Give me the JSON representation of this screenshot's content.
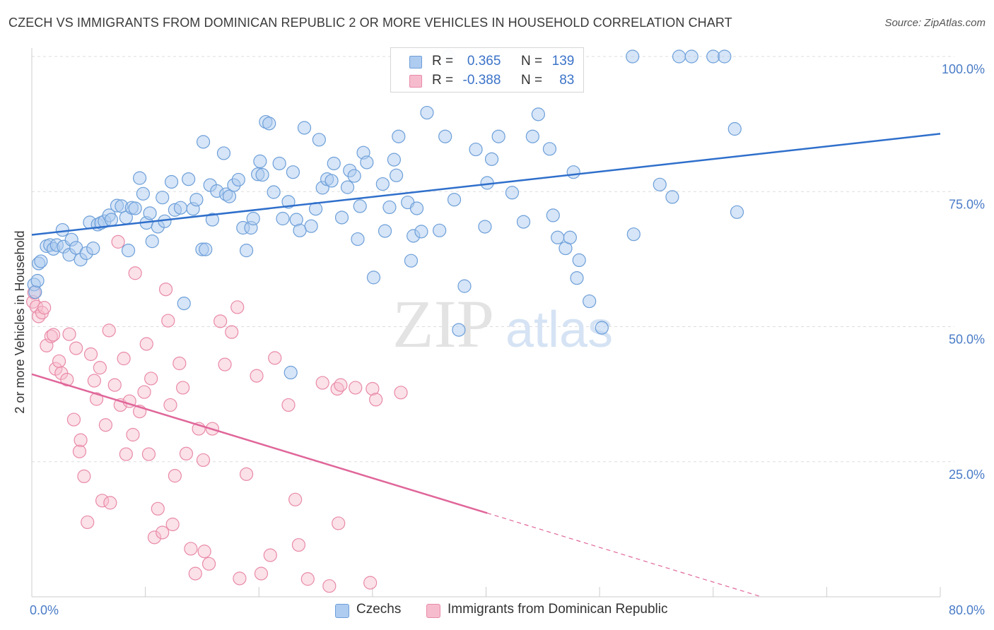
{
  "header": {
    "title": "CZECH VS IMMIGRANTS FROM DOMINICAN REPUBLIC 2 OR MORE VEHICLES IN HOUSEHOLD CORRELATION CHART",
    "source": "Source: ZipAtlas.com"
  },
  "watermark": {
    "zip": "ZIP",
    "atlas": "atlas"
  },
  "legend": {
    "rows": [
      {
        "r_label": "R =",
        "r_value": "0.365",
        "n_label": "N =",
        "n_value": "139"
      },
      {
        "r_label": "R =",
        "r_value": "-0.388",
        "n_label": "N =",
        "n_value": "83"
      }
    ]
  },
  "bottom_legend": [
    "Czechs",
    "Immigrants from Dominican Republic"
  ],
  "colors": {
    "czech_fill": "#aecbf0",
    "czech_stroke": "#6d9fd9",
    "czech_line": "#2f6fcb",
    "dom_fill": "#f6bccd",
    "dom_stroke": "#e98aa8",
    "dom_line": "#e0669a",
    "tick_text": "#4a7cc7",
    "grid": "#dddddd"
  },
  "chart_data": {
    "type": "scatter",
    "title": "CZECH VS IMMIGRANTS FROM DOMINICAN REPUBLIC 2 OR MORE VEHICLES IN HOUSEHOLD CORRELATION CHART",
    "xlabel": "",
    "ylabel": "2 or more Vehicles in Household",
    "xlim": [
      0,
      80
    ],
    "ylim": [
      0,
      102
    ],
    "x_tick_labels": [
      "0.0%",
      "80.0%"
    ],
    "y_ticks": [
      25,
      50,
      75,
      100
    ],
    "y_tick_labels": [
      "25.0%",
      "50.0%",
      "75.0%",
      "100.0%"
    ],
    "grid": "horizontal dashed",
    "legend_placement": "top-center",
    "series": [
      {
        "name": "Czechs",
        "r": 0.365,
        "n": 139,
        "trend": {
          "x": [
            0,
            80
          ],
          "y": [
            67.0,
            85.7
          ]
        },
        "points": [
          [
            0.2,
            57.8
          ],
          [
            0.3,
            56.4
          ],
          [
            0.5,
            58.5
          ],
          [
            0.6,
            61.7
          ],
          [
            0.8,
            62.1
          ],
          [
            1.3,
            64.9
          ],
          [
            1.6,
            65.1
          ],
          [
            1.9,
            64.4
          ],
          [
            2.2,
            65.1
          ],
          [
            2.7,
            67.9
          ],
          [
            2.8,
            64.8
          ],
          [
            3.3,
            63.3
          ],
          [
            3.5,
            66.1
          ],
          [
            3.9,
            64.6
          ],
          [
            4.3,
            62.4
          ],
          [
            4.8,
            63.6
          ],
          [
            5.4,
            64.5
          ],
          [
            5.1,
            69.3
          ],
          [
            5.8,
            68.9
          ],
          [
            6.1,
            69.2
          ],
          [
            6.4,
            69.5
          ],
          [
            6.8,
            70.6
          ],
          [
            7.0,
            69.8
          ],
          [
            7.5,
            72.4
          ],
          [
            7.9,
            72.3
          ],
          [
            8.3,
            70.2
          ],
          [
            8.5,
            64.1
          ],
          [
            8.8,
            72.0
          ],
          [
            9.1,
            71.9
          ],
          [
            9.5,
            77.5
          ],
          [
            9.8,
            74.6
          ],
          [
            10.1,
            69.2
          ],
          [
            10.4,
            71.0
          ],
          [
            10.6,
            65.8
          ],
          [
            11.1,
            68.5
          ],
          [
            11.5,
            73.9
          ],
          [
            11.7,
            69.5
          ],
          [
            12.3,
            76.8
          ],
          [
            12.6,
            71.6
          ],
          [
            13.1,
            72.0
          ],
          [
            13.4,
            54.3
          ],
          [
            13.8,
            77.3
          ],
          [
            14.2,
            71.8
          ],
          [
            14.5,
            73.5
          ],
          [
            15.0,
            64.3
          ],
          [
            15.3,
            64.3
          ],
          [
            15.7,
            76.2
          ],
          [
            15.9,
            69.8
          ],
          [
            16.3,
            75.1
          ],
          [
            16.9,
            82.1
          ],
          [
            17.1,
            74.5
          ],
          [
            17.4,
            74.1
          ],
          [
            17.8,
            76.2
          ],
          [
            18.2,
            77.2
          ],
          [
            18.6,
            68.3
          ],
          [
            18.9,
            64.1
          ],
          [
            19.3,
            68.3
          ],
          [
            19.5,
            70.0
          ],
          [
            19.9,
            78.2
          ],
          [
            20.1,
            80.6
          ],
          [
            20.3,
            78.1
          ],
          [
            20.6,
            87.9
          ],
          [
            20.9,
            87.6
          ],
          [
            21.3,
            74.9
          ],
          [
            21.8,
            80.2
          ],
          [
            22.1,
            70.0
          ],
          [
            22.6,
            73.1
          ],
          [
            23.0,
            78.6
          ],
          [
            23.3,
            69.8
          ],
          [
            23.6,
            67.8
          ],
          [
            24.0,
            86.8
          ],
          [
            24.6,
            68.6
          ],
          [
            25.0,
            71.8
          ],
          [
            25.3,
            84.6
          ],
          [
            25.6,
            75.7
          ],
          [
            26.0,
            77.3
          ],
          [
            26.4,
            77.0
          ],
          [
            26.6,
            80.2
          ],
          [
            27.3,
            70.2
          ],
          [
            27.8,
            75.8
          ],
          [
            28.0,
            78.9
          ],
          [
            28.4,
            77.9
          ],
          [
            28.7,
            66.2
          ],
          [
            28.9,
            72.3
          ],
          [
            29.2,
            82.2
          ],
          [
            29.5,
            80.4
          ],
          [
            30.1,
            59.1
          ],
          [
            30.9,
            76.4
          ],
          [
            31.1,
            67.7
          ],
          [
            31.5,
            72.1
          ],
          [
            31.9,
            80.9
          ],
          [
            32.3,
            85.2
          ],
          [
            32.1,
            78.0
          ],
          [
            33.1,
            73.0
          ],
          [
            33.4,
            62.2
          ],
          [
            33.6,
            66.8
          ],
          [
            33.9,
            71.9
          ],
          [
            34.3,
            67.6
          ],
          [
            34.8,
            89.6
          ],
          [
            35.9,
            67.8
          ],
          [
            36.4,
            85.2
          ],
          [
            36.7,
            100.0
          ],
          [
            37.2,
            73.5
          ],
          [
            38.1,
            57.5
          ],
          [
            37.6,
            49.4
          ],
          [
            39.1,
            82.8
          ],
          [
            39.9,
            68.5
          ],
          [
            40.1,
            76.6
          ],
          [
            40.5,
            81.0
          ],
          [
            41.1,
            85.2
          ],
          [
            42.3,
            74.8
          ],
          [
            43.3,
            69.4
          ],
          [
            44.1,
            85.2
          ],
          [
            44.6,
            89.3
          ],
          [
            45.6,
            82.9
          ],
          [
            45.9,
            70.6
          ],
          [
            46.3,
            66.5
          ],
          [
            47.0,
            64.5
          ],
          [
            47.4,
            66.5
          ],
          [
            47.7,
            78.6
          ],
          [
            48.0,
            59.0
          ],
          [
            48.2,
            62.3
          ],
          [
            49.1,
            54.7
          ],
          [
            50.2,
            49.8
          ],
          [
            52.9,
            100.0
          ],
          [
            53.0,
            67.1
          ],
          [
            55.3,
            76.3
          ],
          [
            56.4,
            74.0
          ],
          [
            57.0,
            100.0
          ],
          [
            58.1,
            100.0
          ],
          [
            60.0,
            100.0
          ],
          [
            61.9,
            86.6
          ],
          [
            62.1,
            71.2
          ],
          [
            61.0,
            100.0
          ],
          [
            22.8,
            41.5
          ],
          [
            15.1,
            84.2
          ]
        ]
      },
      {
        "name": "Immigrants from Dominican Republic",
        "r": -0.388,
        "n": 83,
        "trend": {
          "x": [
            0,
            40.1
          ],
          "y": [
            41.2,
            15.5
          ]
        },
        "trend_extension": {
          "x": [
            40.1,
            80
          ],
          "y": [
            15.5,
            -10.1
          ]
        },
        "points": [
          [
            0.1,
            54.6
          ],
          [
            0.2,
            56.3
          ],
          [
            0.4,
            53.7
          ],
          [
            0.6,
            51.9
          ],
          [
            0.9,
            52.6
          ],
          [
            1.1,
            53.5
          ],
          [
            1.3,
            46.5
          ],
          [
            1.7,
            48.2
          ],
          [
            1.9,
            48.5
          ],
          [
            2.1,
            42.2
          ],
          [
            2.4,
            43.6
          ],
          [
            2.6,
            41.4
          ],
          [
            3.1,
            40.2
          ],
          [
            3.3,
            48.6
          ],
          [
            3.7,
            32.8
          ],
          [
            3.9,
            46.0
          ],
          [
            4.2,
            26.9
          ],
          [
            4.3,
            29.0
          ],
          [
            4.6,
            22.3
          ],
          [
            4.9,
            13.8
          ],
          [
            5.2,
            44.9
          ],
          [
            5.5,
            40.0
          ],
          [
            5.7,
            36.6
          ],
          [
            6.0,
            42.4
          ],
          [
            6.2,
            17.8
          ],
          [
            6.5,
            31.8
          ],
          [
            6.8,
            49.3
          ],
          [
            6.9,
            17.4
          ],
          [
            7.3,
            39.2
          ],
          [
            7.6,
            65.7
          ],
          [
            7.8,
            35.5
          ],
          [
            8.1,
            44.1
          ],
          [
            8.3,
            26.4
          ],
          [
            8.6,
            36.2
          ],
          [
            8.9,
            30.0
          ],
          [
            9.1,
            59.9
          ],
          [
            9.5,
            34.3
          ],
          [
            9.9,
            37.9
          ],
          [
            10.1,
            46.8
          ],
          [
            10.3,
            26.4
          ],
          [
            10.5,
            40.4
          ],
          [
            10.8,
            11.0
          ],
          [
            11.1,
            16.3
          ],
          [
            11.5,
            11.9
          ],
          [
            11.8,
            56.9
          ],
          [
            12.0,
            51.1
          ],
          [
            12.2,
            35.5
          ],
          [
            12.4,
            13.4
          ],
          [
            12.6,
            22.4
          ],
          [
            13.0,
            43.2
          ],
          [
            13.3,
            38.7
          ],
          [
            13.6,
            26.5
          ],
          [
            14.0,
            8.9
          ],
          [
            14.4,
            4.3
          ],
          [
            14.7,
            31.1
          ],
          [
            15.1,
            25.3
          ],
          [
            15.2,
            8.4
          ],
          [
            15.6,
            6.1
          ],
          [
            15.9,
            31.1
          ],
          [
            16.6,
            51.0
          ],
          [
            17.0,
            43.0
          ],
          [
            17.6,
            49.0
          ],
          [
            18.1,
            53.6
          ],
          [
            18.3,
            3.4
          ],
          [
            18.9,
            22.7
          ],
          [
            19.8,
            40.9
          ],
          [
            20.2,
            4.3
          ],
          [
            21.0,
            7.7
          ],
          [
            21.4,
            44.2
          ],
          [
            22.6,
            35.5
          ],
          [
            23.2,
            18.0
          ],
          [
            23.5,
            9.6
          ],
          [
            24.3,
            3.3
          ],
          [
            25.6,
            39.6
          ],
          [
            26.2,
            2.0
          ],
          [
            26.9,
            38.5
          ],
          [
            27.0,
            13.6
          ],
          [
            27.2,
            39.2
          ],
          [
            28.5,
            38.7
          ],
          [
            29.8,
            2.6
          ],
          [
            30.0,
            38.5
          ],
          [
            30.3,
            36.5
          ],
          [
            32.5,
            37.8
          ]
        ]
      }
    ]
  }
}
